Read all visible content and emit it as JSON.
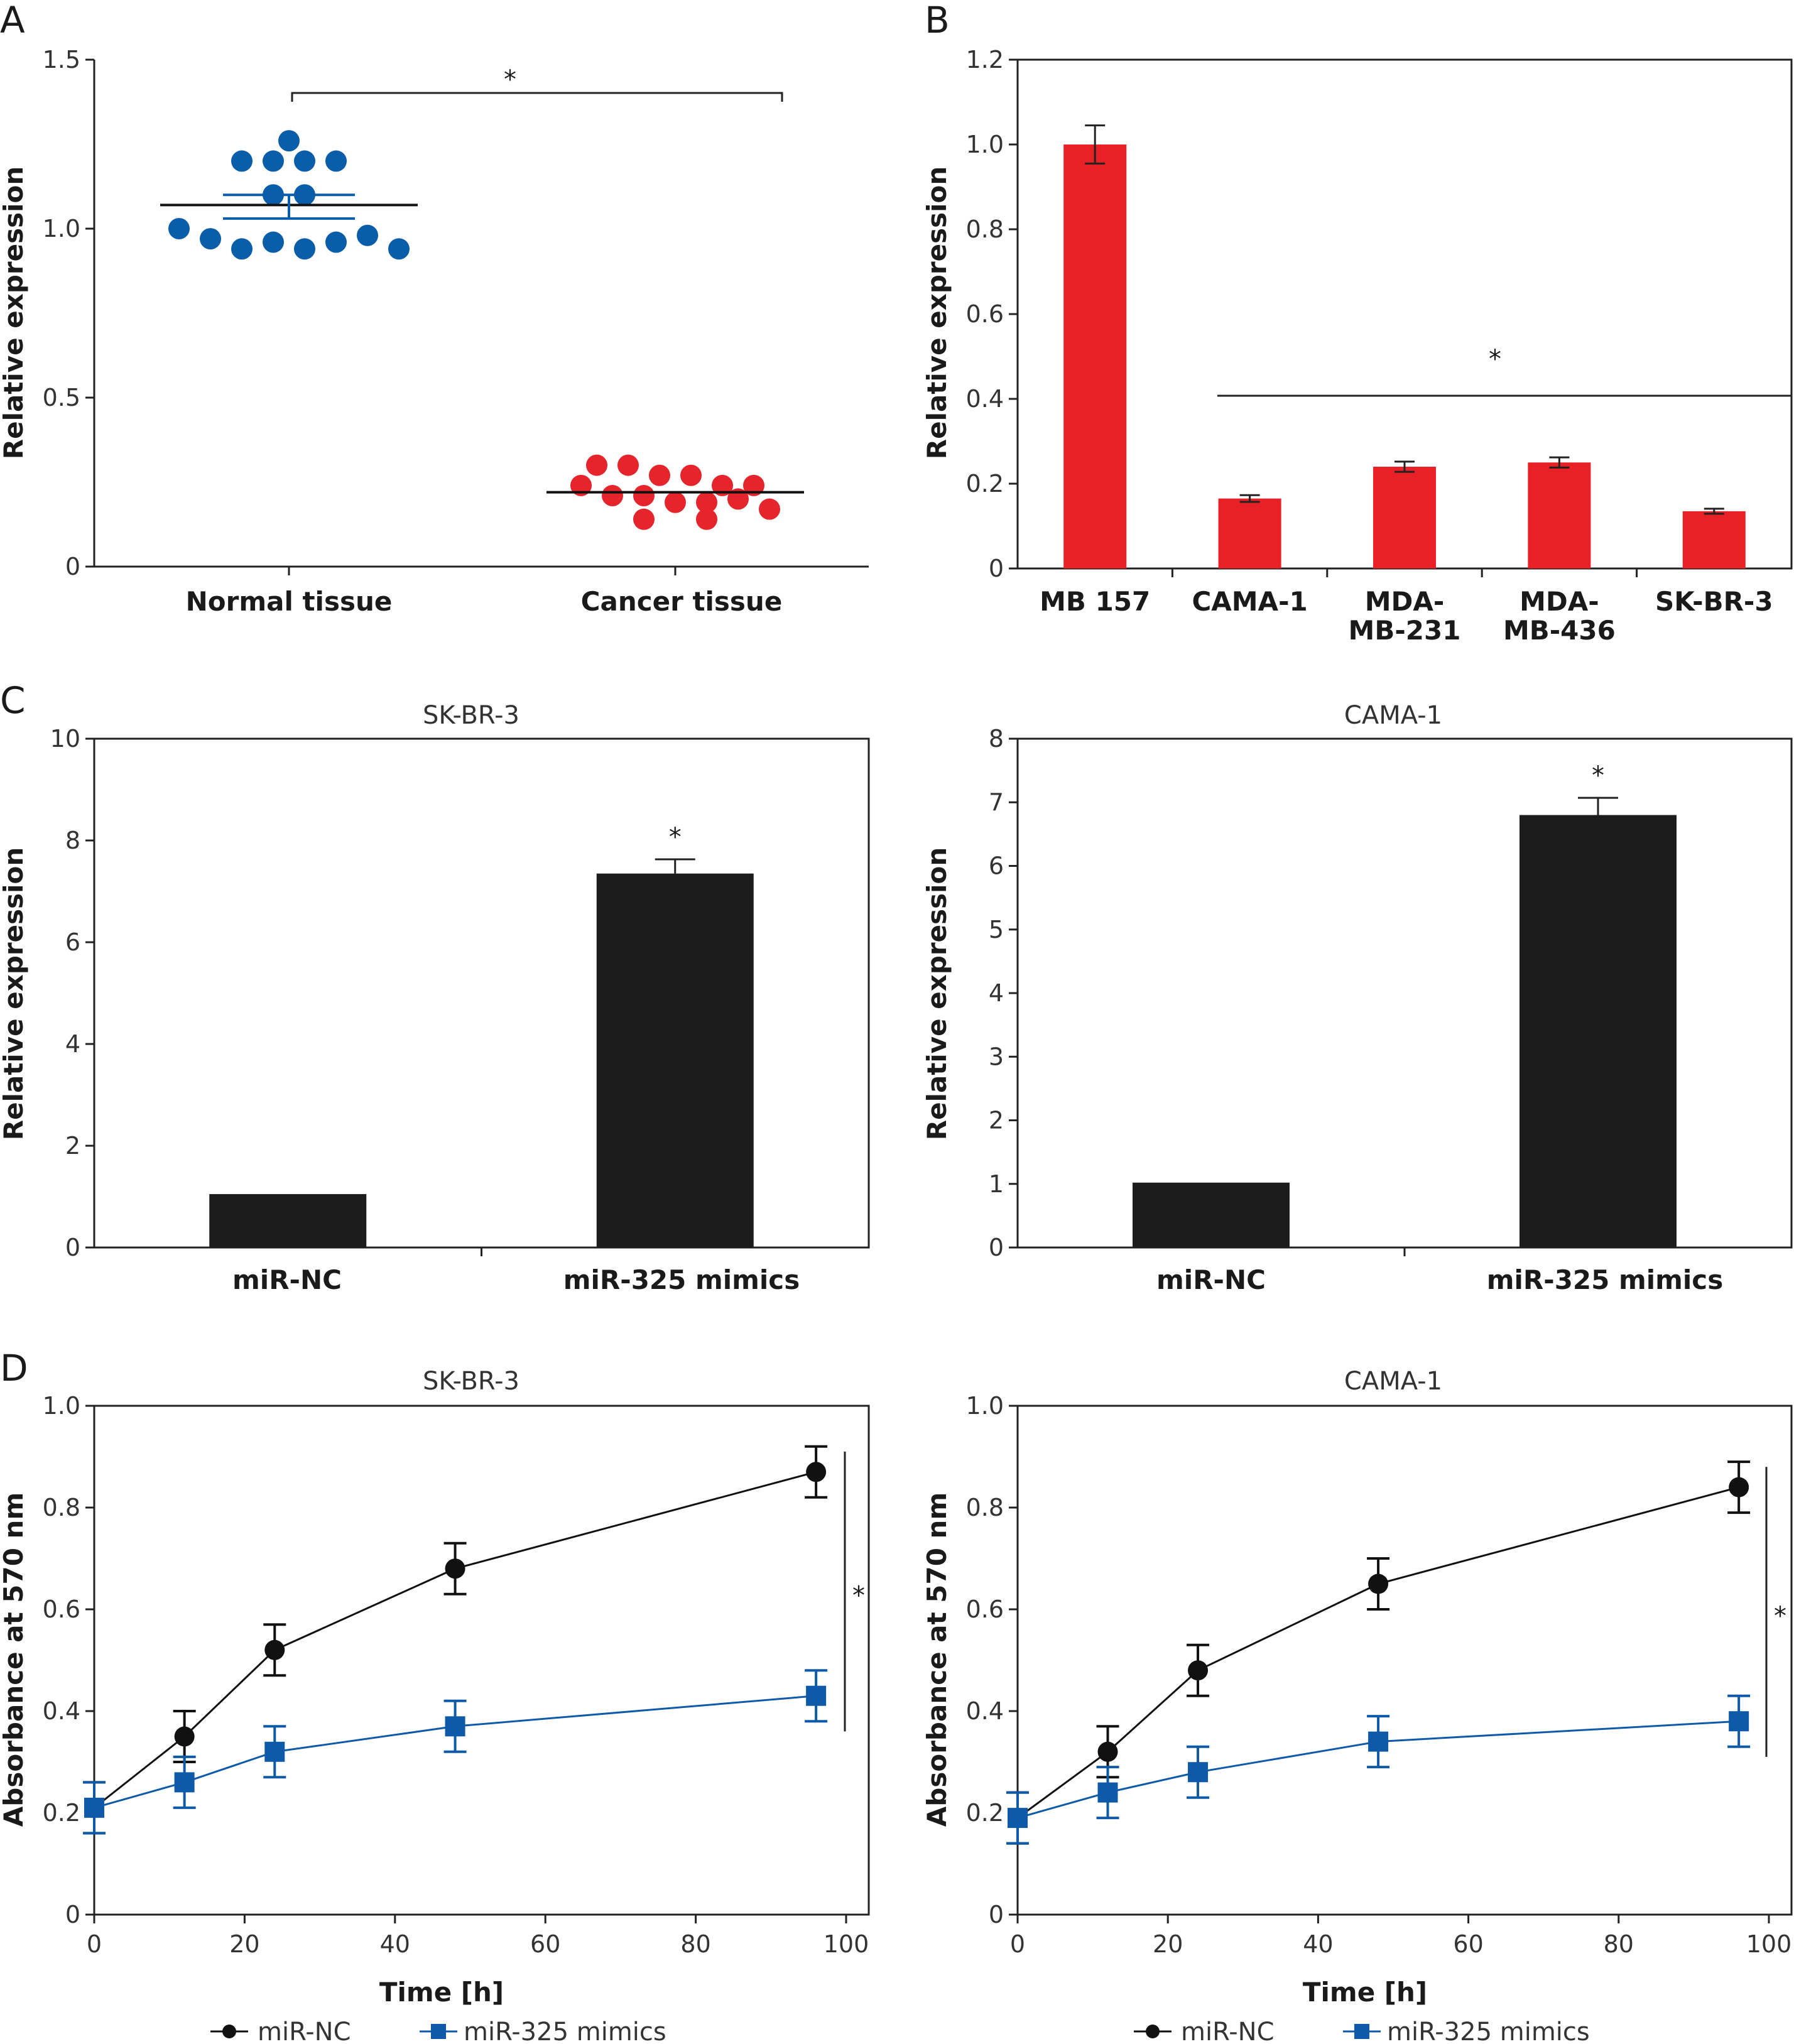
{
  "colors": {
    "normal": "#0a5da8",
    "cancer": "#e6242b",
    "mimics": "#0f5aa8",
    "nc": "#111111",
    "bar_black": "#1c1c1c",
    "bar_red": "#e82127"
  },
  "panels": {
    "A": {
      "letter": "A",
      "star": "*"
    },
    "B": {
      "letter": "B",
      "star": "*"
    },
    "C": {
      "letter": "C",
      "left_title": "SK-BR-3",
      "right_title": "CAMA-1",
      "star": "*"
    },
    "D": {
      "letter": "D",
      "left_title": "SK-BR-3",
      "right_title": "CAMA-1",
      "star": "*"
    }
  },
  "chart_data": [
    {
      "id": "A",
      "type": "scatter",
      "title": "",
      "ylabel": "Relative expression",
      "xlabel": "",
      "ylim": [
        0,
        1.5
      ],
      "yticks": [
        "0",
        "0.5",
        "1.0",
        "1.5"
      ],
      "categories": [
        "Normal tissue",
        "Cancer tissue"
      ],
      "series": [
        {
          "name": "Normal tissue",
          "color": "#0a5da8",
          "mean": 1.07,
          "sem_low": 1.03,
          "sem_high": 1.1,
          "points": [
            1.26,
            1.2,
            1.2,
            1.2,
            1.2,
            1.1,
            1.1,
            1.0,
            0.97,
            0.94,
            0.96,
            0.94,
            0.96,
            0.98,
            0.94
          ]
        },
        {
          "name": "Cancer tissue",
          "color": "#e6242b",
          "mean": 0.22,
          "points": [
            0.3,
            0.3,
            0.27,
            0.27,
            0.24,
            0.24,
            0.24,
            0.21,
            0.21,
            0.19,
            0.19,
            0.2,
            0.17,
            0.14,
            0.14
          ]
        }
      ],
      "significance": "*"
    },
    {
      "id": "B",
      "type": "bar",
      "title": "",
      "ylabel": "Relative expression",
      "ylim": [
        0,
        1.2
      ],
      "yticks": [
        "0",
        "0.2",
        "0.4",
        "0.6",
        "0.8",
        "1.0",
        "1.2"
      ],
      "categories": [
        [
          "MB 157"
        ],
        [
          "CAMA-1"
        ],
        [
          "MDA-",
          "MB-231"
        ],
        [
          "MDA-",
          "MB-436"
        ],
        [
          "SK-BR-3"
        ]
      ],
      "values": [
        1.0,
        0.165,
        0.24,
        0.25,
        0.135
      ],
      "errors": [
        0.045,
        0.008,
        0.012,
        0.012,
        0.006
      ],
      "significance": "*"
    },
    {
      "id": "C-left",
      "type": "bar",
      "title": "SK-BR-3",
      "ylabel": "Relative expression",
      "ylim": [
        0,
        10
      ],
      "yticks": [
        "0",
        "2",
        "4",
        "6",
        "8",
        "10"
      ],
      "categories": [
        "miR-NC",
        "miR-325 mimics"
      ],
      "values": [
        1.05,
        7.35
      ],
      "errors": [
        0,
        0.28
      ],
      "significance": "*"
    },
    {
      "id": "C-right",
      "type": "bar",
      "title": "CAMA-1",
      "ylabel": "Relative expression",
      "ylim": [
        0,
        8
      ],
      "yticks": [
        "0",
        "1",
        "2",
        "3",
        "4",
        "5",
        "6",
        "7",
        "8"
      ],
      "categories": [
        "miR-NC",
        "miR-325 mimics"
      ],
      "values": [
        1.02,
        6.8
      ],
      "errors": [
        0,
        0.27
      ],
      "significance": "*"
    },
    {
      "id": "D-left",
      "type": "line",
      "title": "SK-BR-3",
      "xlabel": "Time [h]",
      "ylabel": "Absorbance at 570 nm",
      "xlim": [
        0,
        100
      ],
      "ylim": [
        0,
        1.0
      ],
      "xticks": [
        "0",
        "20",
        "40",
        "60",
        "80",
        "100"
      ],
      "yticks": [
        "0",
        "0.2",
        "0.4",
        "0.6",
        "0.8",
        "1.0"
      ],
      "x": [
        0,
        12,
        24,
        48,
        96
      ],
      "series": [
        {
          "name": "miR-NC",
          "marker": "circle",
          "values": [
            0.21,
            0.35,
            0.52,
            0.68,
            0.87
          ],
          "errors": [
            0.05,
            0.05,
            0.05,
            0.05,
            0.05
          ]
        },
        {
          "name": "miR-325 mimics",
          "marker": "square",
          "values": [
            0.21,
            0.26,
            0.32,
            0.37,
            0.43
          ],
          "errors": [
            0.05,
            0.05,
            0.05,
            0.05,
            0.05
          ]
        }
      ],
      "significance": "*"
    },
    {
      "id": "D-right",
      "type": "line",
      "title": "CAMA-1",
      "xlabel": "Time [h]",
      "ylabel": "Absorbance at 570 nm",
      "xlim": [
        0,
        100
      ],
      "ylim": [
        0,
        1.0
      ],
      "xticks": [
        "0",
        "20",
        "40",
        "60",
        "80",
        "100"
      ],
      "yticks": [
        "0",
        "0.2",
        "0.4",
        "0.6",
        "0.8",
        "1.0"
      ],
      "x": [
        0,
        12,
        24,
        48,
        96
      ],
      "series": [
        {
          "name": "miR-NC",
          "marker": "circle",
          "values": [
            0.19,
            0.32,
            0.48,
            0.65,
            0.84
          ],
          "errors": [
            0.05,
            0.05,
            0.05,
            0.05,
            0.05
          ]
        },
        {
          "name": "miR-325 mimics",
          "marker": "square",
          "values": [
            0.19,
            0.24,
            0.28,
            0.34,
            0.38
          ],
          "errors": [
            0.05,
            0.05,
            0.05,
            0.05,
            0.05
          ]
        }
      ],
      "significance": "*"
    }
  ]
}
